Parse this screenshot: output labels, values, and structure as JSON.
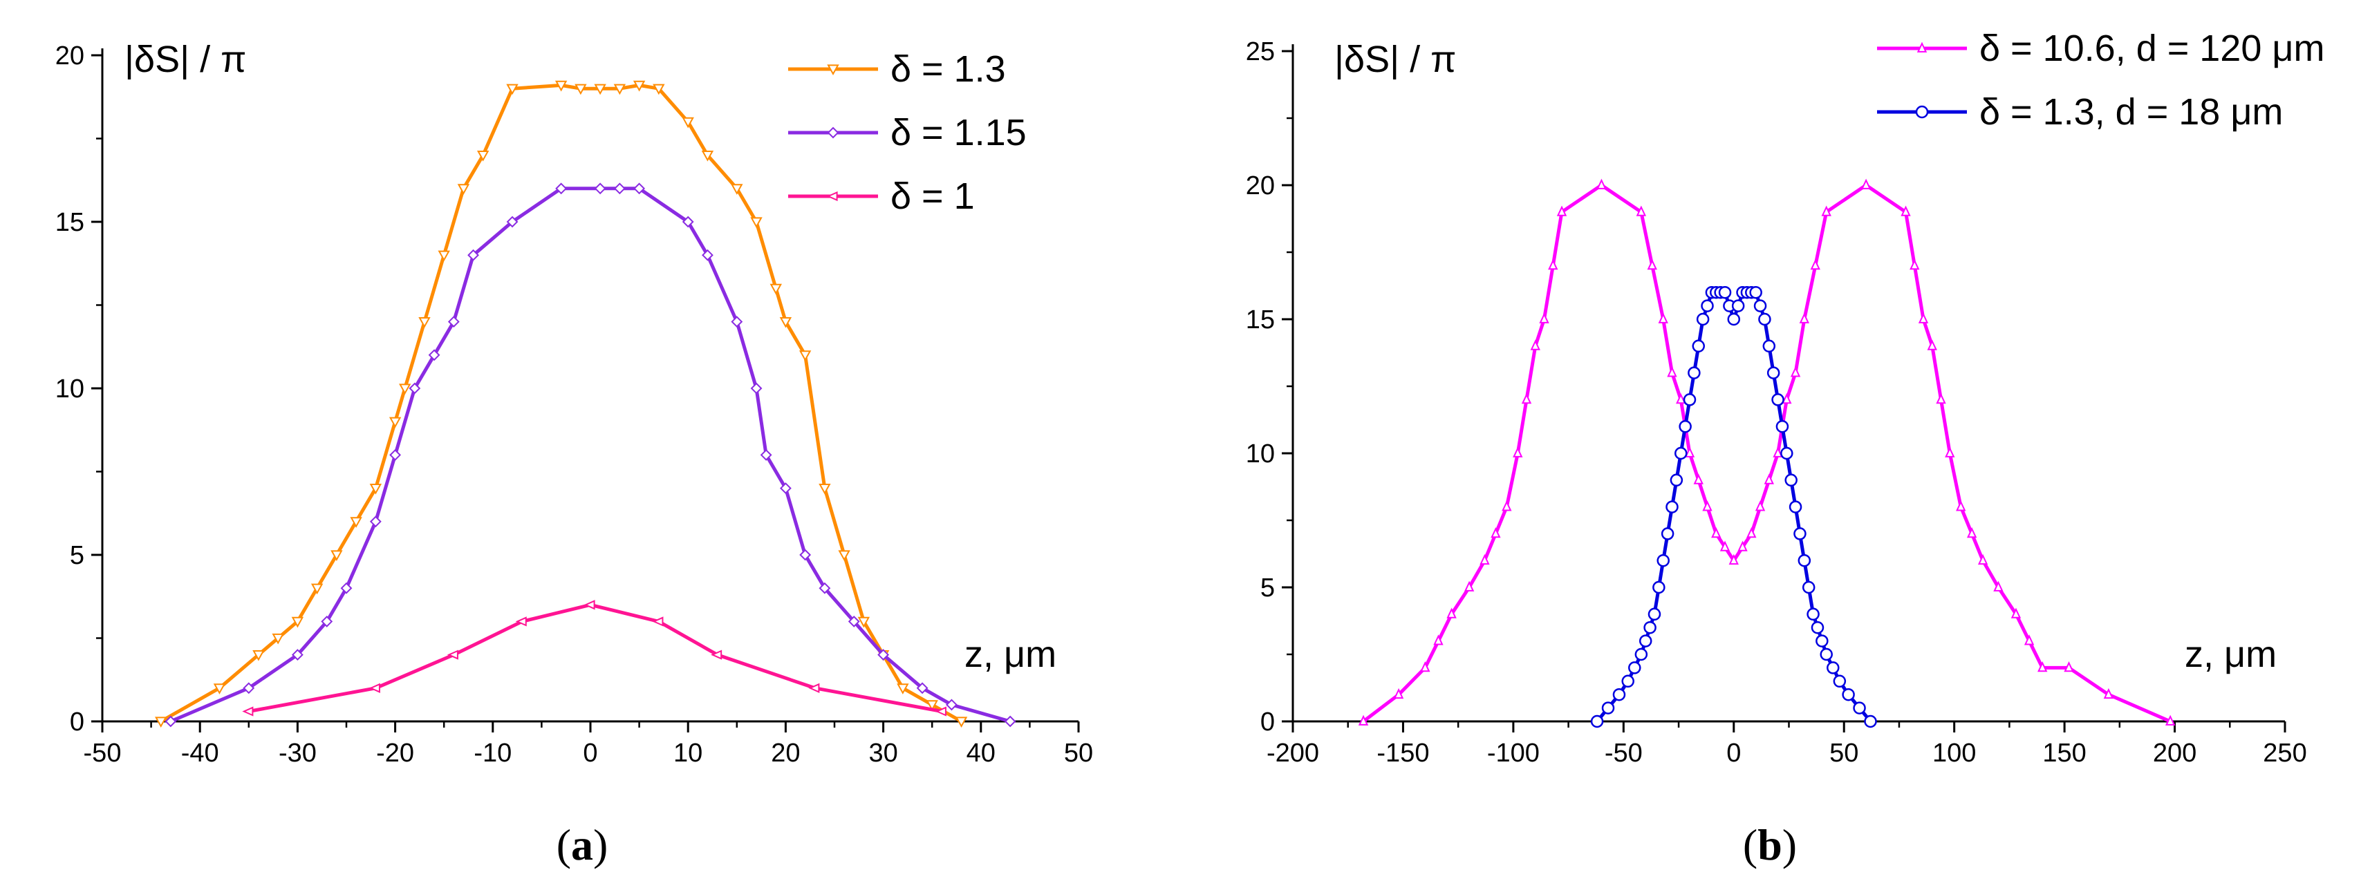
{
  "chart_data": [
    {
      "type": "line",
      "panel_label": "a",
      "ylabel": "|δS| / π",
      "xlabel": "z, μm",
      "xlim": [
        -50,
        50
      ],
      "ylim": [
        0,
        20
      ],
      "xticks": [
        -50,
        -40,
        -30,
        -20,
        -10,
        0,
        10,
        20,
        30,
        40,
        50
      ],
      "yticks": [
        0,
        5,
        10,
        15,
        20
      ],
      "xtick_labels": [
        "-50",
        "-40",
        "-30",
        "-20",
        "-10",
        "0",
        "10",
        "20",
        "30",
        "40",
        "50"
      ],
      "ytick_labels": [
        "0",
        "5",
        "10",
        "15",
        "20"
      ],
      "series": [
        {
          "name": "δ = 1.3",
          "color": "#FF8C00",
          "marker": "triangle-down",
          "x": [
            -44,
            -38,
            -34,
            -32,
            -30,
            -28,
            -26,
            -24,
            -22,
            -20,
            -19,
            -17,
            -15,
            -13,
            -11,
            -8,
            -3,
            -1,
            1,
            3,
            5,
            7,
            10,
            12,
            15,
            17,
            19,
            20,
            22,
            24,
            26,
            28,
            30,
            32,
            35,
            38
          ],
          "y": [
            0,
            1,
            2,
            2.5,
            3,
            4,
            5,
            6,
            7,
            9,
            10,
            12,
            14,
            16,
            17,
            19,
            19.1,
            19,
            19,
            19,
            19.1,
            19,
            18,
            17,
            16,
            15,
            13,
            12,
            11,
            7,
            5,
            3,
            2,
            1,
            0.5,
            0
          ]
        },
        {
          "name": "δ = 1.15",
          "color": "#8A2BE2",
          "marker": "diamond",
          "x": [
            -43,
            -35,
            -30,
            -27,
            -25,
            -22,
            -20,
            -18,
            -16,
            -14,
            -12,
            -8,
            -3,
            1,
            3,
            5,
            10,
            12,
            15,
            17,
            18,
            20,
            22,
            24,
            27,
            30,
            34,
            37,
            43
          ],
          "y": [
            0,
            1,
            2,
            3,
            4,
            6,
            8,
            10,
            11,
            12,
            14,
            15,
            16,
            16,
            16,
            16,
            15,
            14,
            12,
            10,
            8,
            7,
            5,
            4,
            3,
            2,
            1,
            0.5,
            0
          ]
        },
        {
          "name": "δ = 1",
          "color": "#FF1493",
          "marker": "triangle-left",
          "x": [
            -35,
            -22,
            -14,
            -7,
            0,
            7,
            13,
            23,
            36
          ],
          "y": [
            0.3,
            1,
            2,
            3,
            3.5,
            3,
            2,
            1,
            0.3
          ]
        }
      ]
    },
    {
      "type": "line",
      "panel_label": "b",
      "ylabel": "|δS| / π",
      "xlabel": "z, μm",
      "xlim": [
        -200,
        250
      ],
      "ylim": [
        0,
        25
      ],
      "xticks": [
        -200,
        -150,
        -100,
        -50,
        0,
        50,
        100,
        150,
        200,
        250
      ],
      "yticks": [
        0,
        5,
        10,
        15,
        20,
        25
      ],
      "xtick_labels": [
        "-200",
        "-150",
        "-100",
        "-50",
        "0",
        "50",
        "100",
        "150",
        "200",
        "250"
      ],
      "ytick_labels": [
        "0",
        "5",
        "10",
        "15",
        "20",
        "25"
      ],
      "series": [
        {
          "name": "δ = 10.6, d = 120 μm",
          "color": "#FF00FF",
          "marker": "triangle-up",
          "x": [
            -168,
            -152,
            -140,
            -134,
            -128,
            -120,
            -113,
            -108,
            -103,
            -98,
            -94,
            -90,
            -86,
            -82,
            -78,
            -60,
            -42,
            -37,
            -32,
            -28,
            -24,
            -20,
            -16,
            -12,
            -8,
            -4,
            0,
            4,
            8,
            12,
            16,
            20,
            24,
            28,
            32,
            37,
            42,
            60,
            78,
            82,
            86,
            90,
            94,
            98,
            103,
            108,
            113,
            120,
            128,
            134,
            140,
            152,
            170,
            198
          ],
          "y": [
            0,
            1,
            2,
            3,
            4,
            5,
            6,
            7,
            8,
            10,
            12,
            14,
            15,
            17,
            19,
            20,
            19,
            17,
            15,
            13,
            12,
            10,
            9,
            8,
            7,
            6.5,
            6,
            6.5,
            7,
            8,
            9,
            10,
            12,
            13,
            15,
            17,
            19,
            20,
            19,
            17,
            15,
            14,
            12,
            10,
            8,
            7,
            6,
            5,
            4,
            3,
            2,
            2,
            1,
            0
          ]
        },
        {
          "name": "δ = 1.3, d = 18 μm",
          "color": "#0000E0",
          "marker": "circle",
          "x": [
            -62,
            -57,
            -52,
            -48,
            -45,
            -42,
            -40,
            -38,
            -36,
            -34,
            -32,
            -30,
            -28,
            -26,
            -24,
            -22,
            -20,
            -18,
            -16,
            -14,
            -12,
            -10,
            -8,
            -6,
            -4,
            -2,
            0,
            2,
            4,
            6,
            8,
            10,
            12,
            14,
            16,
            18,
            20,
            22,
            24,
            26,
            28,
            30,
            32,
            34,
            36,
            38,
            40,
            42,
            45,
            48,
            52,
            57,
            62
          ],
          "y": [
            0,
            0.5,
            1,
            1.5,
            2,
            2.5,
            3,
            3.5,
            4,
            5,
            6,
            7,
            8,
            9,
            10,
            11,
            12,
            13,
            14,
            15,
            15.5,
            16,
            16,
            16,
            16,
            15.5,
            15,
            15.5,
            16,
            16,
            16,
            16,
            15.5,
            15,
            14,
            13,
            12,
            11,
            10,
            9,
            8,
            7,
            6,
            5,
            4,
            3.5,
            3,
            2.5,
            2,
            1.5,
            1,
            0.5,
            0
          ]
        }
      ]
    }
  ]
}
